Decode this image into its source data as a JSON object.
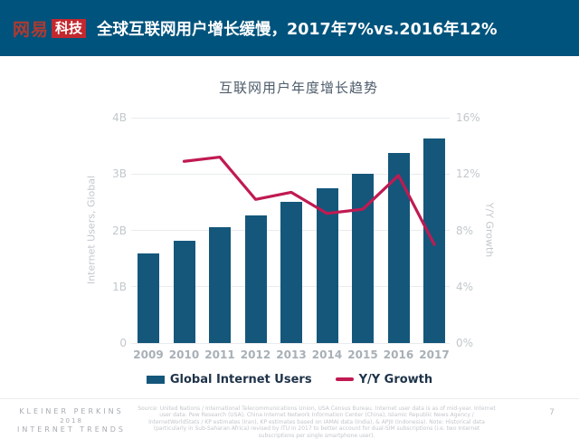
{
  "header": {
    "logo_brand": "网易",
    "logo_suffix": "科技",
    "title": "全球互联网用户增长缓慢，2017年7%vs.2016年12%"
  },
  "colors": {
    "header_bg": "#00537c",
    "logo_red": "#c4282f",
    "logo_brand_red": "#b03a31",
    "bar": "#14577b",
    "line": "#c01a52"
  },
  "chart_data": {
    "type": "bar",
    "title": "互联网用户年度增长趋势",
    "categories": [
      "2009",
      "2010",
      "2011",
      "2012",
      "2013",
      "2014",
      "2015",
      "2016",
      "2017"
    ],
    "series": [
      {
        "name": "Global Internet Users",
        "type": "bar",
        "axis": "left",
        "unit": "B",
        "values": [
          1.59,
          1.82,
          2.05,
          2.27,
          2.5,
          2.74,
          3.01,
          3.38,
          3.63
        ],
        "color": "#14577b"
      },
      {
        "name": "Y/Y Growth",
        "type": "line",
        "axis": "right",
        "unit": "%",
        "values": [
          null,
          12.9,
          13.2,
          10.2,
          10.7,
          9.2,
          9.5,
          11.9,
          7.0
        ],
        "color": "#c01a52"
      }
    ],
    "left_axis": {
      "label": "Internet Users, Global",
      "min": 0,
      "max": 4,
      "ticks": [
        "0",
        "1B",
        "2B",
        "3B",
        "4B"
      ]
    },
    "right_axis": {
      "label": "Y/Y Growth",
      "min": 0,
      "max": 16,
      "ticks": [
        "0%",
        "4%",
        "8%",
        "12%",
        "16%"
      ]
    },
    "grid": true,
    "legend_position": "bottom"
  },
  "footer": {
    "brand_line1": "KLEINER PERKINS",
    "brand_line2": "2018",
    "brand_line3": "INTERNET TRENDS",
    "source": "Source: United Nations / International Telecommunications Union, USA Census Bureau. Internet user data is as of mid-year. Internet user data: Pew Research (USA), China Internet Network Information Center (China), Islamic Republic News Agency / InternetWorldStats / KP estimates (Iran), KP estimates based on IAMAI data (India), & APJII (Indonesia). Note: Historical data (particularly in Sub-Saharan Africa) revised by ITU in 2017 to better account for dual-SIM subscriptions (i.e. two Internet subscriptions per single smartphone user).",
    "page_number": "7"
  }
}
